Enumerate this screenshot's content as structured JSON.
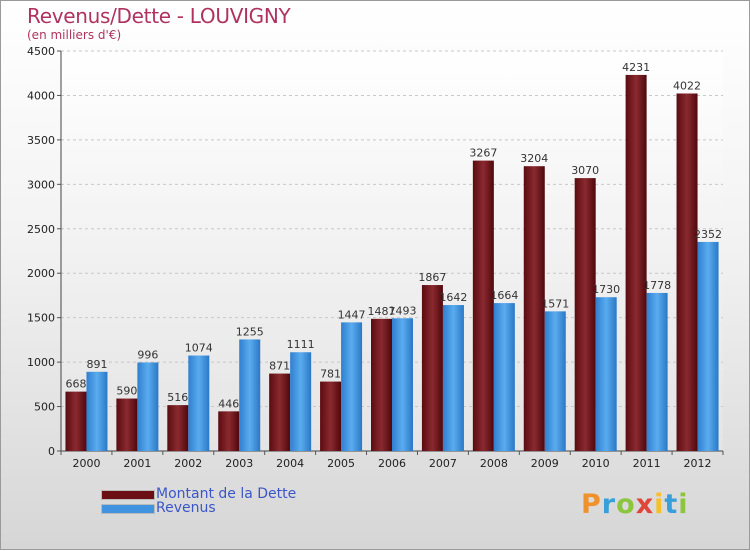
{
  "chart_data": {
    "type": "bar",
    "title": "Revenus/Dette - LOUVIGNY",
    "subtitle": "(en milliers d'€)",
    "categories": [
      "2000",
      "2001",
      "2002",
      "2003",
      "2004",
      "2005",
      "2006",
      "2007",
      "2008",
      "2009",
      "2010",
      "2011",
      "2012"
    ],
    "series": [
      {
        "name": "Montant de la Dette",
        "color": "#7a1e24",
        "values": [
          668,
          590,
          516,
          446,
          871,
          781,
          1487,
          1867,
          3267,
          3204,
          3070,
          4231,
          4022
        ]
      },
      {
        "name": "Revenus",
        "color": "#3f93df",
        "values": [
          891,
          996,
          1074,
          1255,
          1111,
          1447,
          1493,
          1642,
          1664,
          1571,
          1730,
          1778,
          2352
        ]
      }
    ],
    "ylim": [
      0,
      4500
    ],
    "yticks": [
      0,
      500,
      1000,
      1500,
      2000,
      2500,
      3000,
      3500,
      4000,
      4500
    ],
    "grid": true,
    "legend_position": "bottom-left"
  },
  "logo": {
    "letters": [
      "P",
      "r",
      "o",
      "x",
      "i",
      "t",
      "i"
    ],
    "colors": [
      "#f0922c",
      "#37a0d8",
      "#8cc63e",
      "#e0453a",
      "#f5c02a",
      "#37a0d8",
      "#8cc63e"
    ]
  }
}
